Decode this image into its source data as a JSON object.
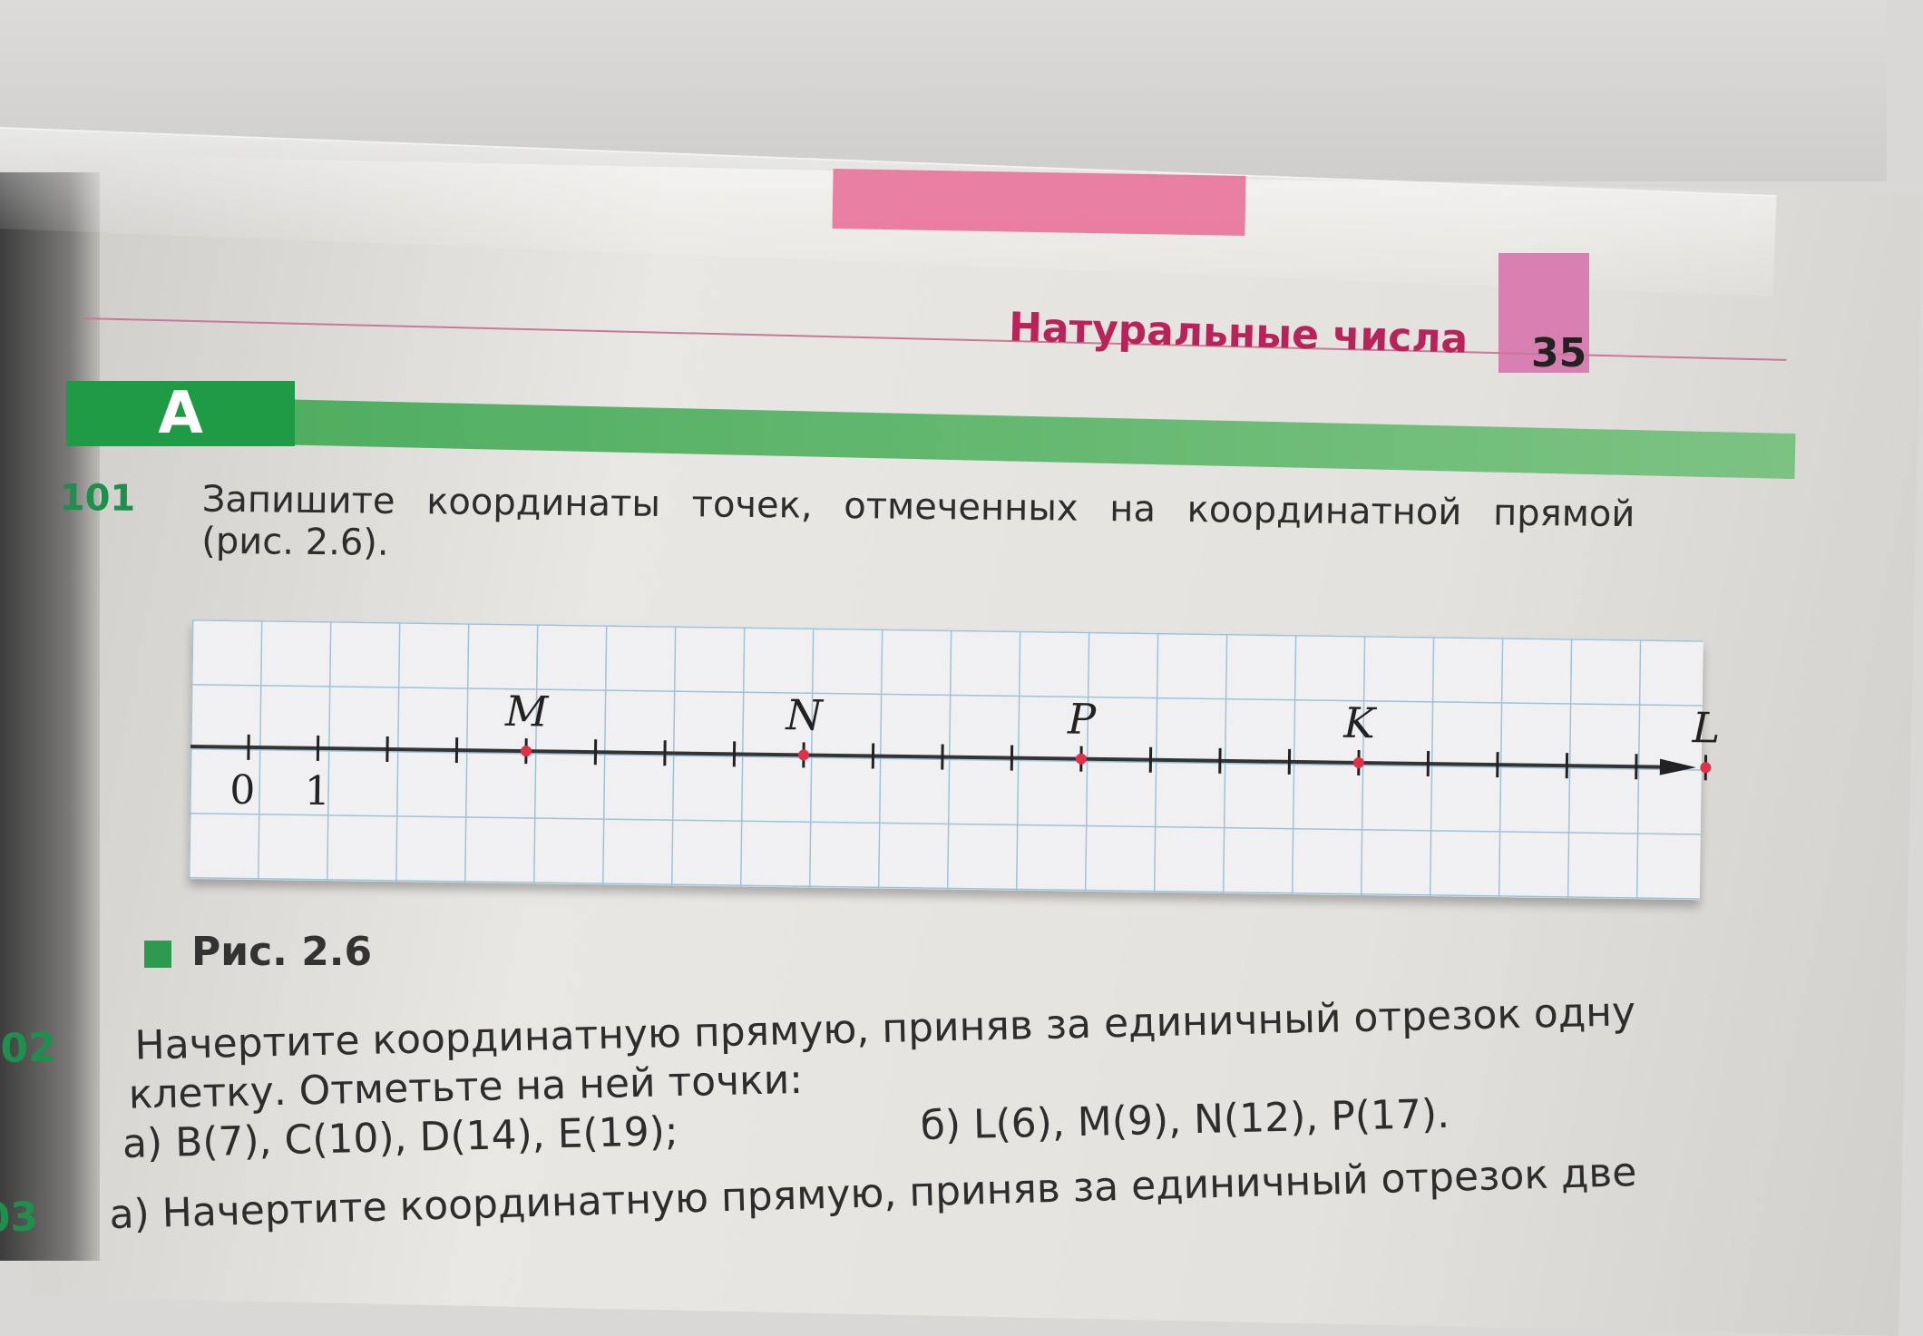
{
  "header": {
    "title": "Натуральные числа",
    "page_number": "35"
  },
  "section": {
    "label": "А"
  },
  "ex101": {
    "number": "101",
    "text_line1": "Запишите координаты точек, отмеченных на координатной прямой",
    "text_line2": "(рис. 2.6)."
  },
  "figure": {
    "origin_label": "0",
    "unit_label": "1",
    "points": [
      {
        "label": "M",
        "value": 4
      },
      {
        "label": "N",
        "value": 8
      },
      {
        "label": "P",
        "value": 12
      },
      {
        "label": "K",
        "value": 16
      },
      {
        "label": "L",
        "value": 21
      }
    ],
    "ticks_max": 21,
    "point_color": "#e0304a",
    "caption": "Рис. 2.6"
  },
  "ex102": {
    "number": "02",
    "line1": "Начертите координатную прямую, приняв за единичный отрезок одну",
    "line2": "клетку. Отметьте на ней точки:",
    "part_a": "а) B(7), C(10), D(14), E(19);",
    "part_b": "б) L(6), M(9), N(12), P(17)."
  },
  "ex103": {
    "number": "03",
    "line1": "а) Начертите координатную прямую, приняв за единичный отрезок две"
  },
  "colors": {
    "green": "#1f9a45",
    "pink": "#e8729a",
    "header_text": "#b8245a"
  }
}
